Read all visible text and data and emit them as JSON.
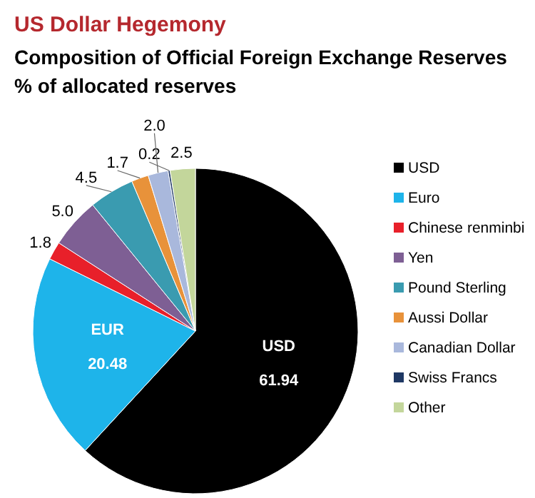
{
  "chart_data": {
    "type": "pie",
    "title": "US Dollar  Hegemony",
    "subtitle": "Composition of Official Foreign Exchange Reserves\n% of allocated reserves",
    "categories": [
      "USD",
      "Euro",
      "Chinese renminbi",
      "Yen",
      "Pound Sterling",
      "Aussi Dollar",
      "Canadian Dollar",
      "Swiss Francs",
      "Other"
    ],
    "values": [
      61.94,
      20.48,
      1.8,
      5.0,
      4.5,
      1.7,
      2.0,
      0.2,
      2.5
    ],
    "value_labels": [
      "USD\n61.94",
      "EUR\n20.48",
      "1.8",
      "5.0",
      "4.5",
      "1.7",
      "2.0",
      "0.2",
      "2.5"
    ],
    "colors": [
      "#000000",
      "#1eb4ea",
      "#e8202a",
      "#7e5f94",
      "#3a9bb0",
      "#e8923a",
      "#a9b8dc",
      "#1f3864",
      "#c3d69b"
    ],
    "legend": "right"
  }
}
